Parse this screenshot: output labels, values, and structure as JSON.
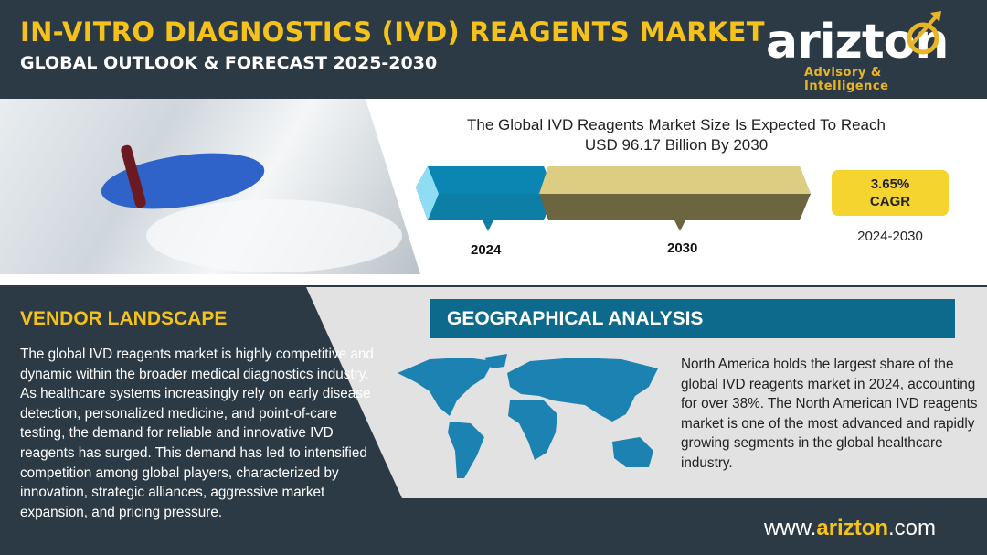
{
  "header": {
    "title": "IN-VITRO DIAGNOSTICS (IVD) REAGENTS MARKET",
    "subtitle": "GLOBAL OUTLOOK & FORECAST 2025-2030"
  },
  "logo": {
    "word": "arizton",
    "tagline": "Advisory & Intelligence"
  },
  "market": {
    "headline_line1": "The Global IVD Reagents Market Size Is Expected To Reach",
    "headline_line2": "USD 96.17 Billion By 2030",
    "bars": [
      {
        "year": "2024",
        "color": "#0b86b3"
      },
      {
        "year": "2030",
        "color": "#dccd82"
      }
    ],
    "cagr_value": "3.65%",
    "cagr_label": "CAGR",
    "cagr_period": "2024-2030"
  },
  "vendor": {
    "title": "VENDOR LANDSCAPE",
    "text": "The global IVD reagents market is highly competitive and dynamic within the broader medical diagnostics industry. As healthcare systems increasingly rely on early disease detection, personalized medicine, and point-of-care testing, the demand for reliable and innovative IVD reagents has surged. This demand has led to intensified competition among global players, characterized by innovation, strategic alliances, aggressive market expansion, and pricing pressure."
  },
  "geo": {
    "title": "GEOGRAPHICAL ANALYSIS",
    "text": "North America holds the largest share of the global IVD reagents market in 2024, accounting for over 38%. The North American IVD reagents market is one of the most advanced and rapidly growing segments in the global healthcare industry.",
    "map_color": "#1b82b1"
  },
  "footer": {
    "site_prefix": "www.",
    "site_brand": "arizton",
    "site_suffix": ".com"
  },
  "colors": {
    "dark": "#2b3a44",
    "accent": "#f4c21b",
    "banner": "#0d6a8c"
  }
}
